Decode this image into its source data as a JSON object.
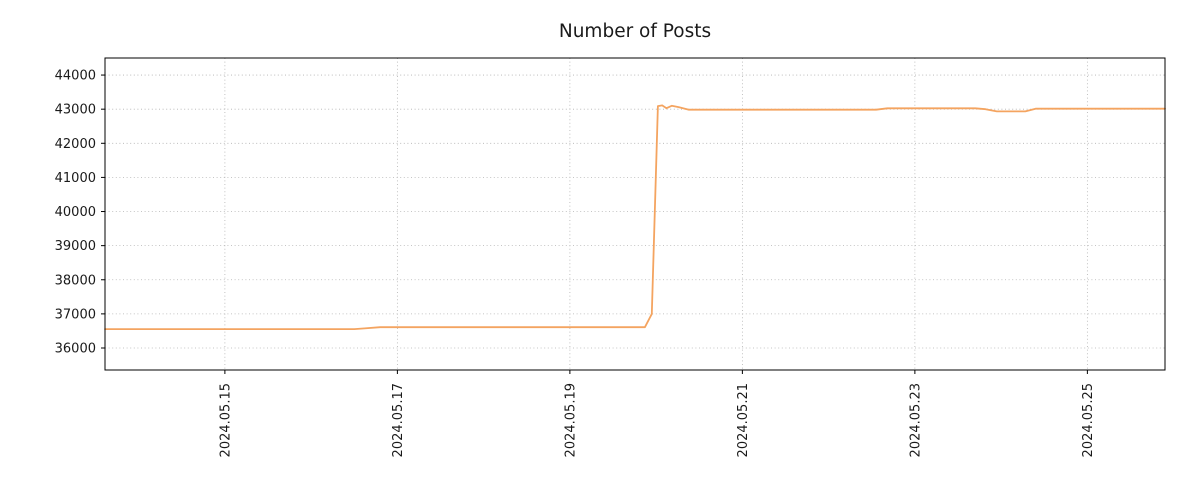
{
  "page": {
    "background": "#ffffff"
  },
  "chart_data": {
    "type": "line",
    "title": "Number of Posts",
    "xlabel": "",
    "ylabel": "",
    "legend": "none",
    "grid": {
      "visible": true,
      "style": "dotted",
      "color": "#b2b2b2"
    },
    "axis_color": "#000000",
    "xlim": [
      13.61,
      25.9
    ],
    "ylim": [
      35355,
      44500
    ],
    "x_ticks": {
      "values": [
        15,
        17,
        19,
        21,
        23,
        25
      ],
      "labels": [
        "2024.05.15",
        "2024.05.17",
        "2024.05.19",
        "2024.05.21",
        "2024.05.23",
        "2024.05.25"
      ]
    },
    "y_ticks": {
      "values": [
        36000,
        37000,
        38000,
        39000,
        40000,
        41000,
        42000,
        43000,
        44000
      ],
      "labels": [
        "36000",
        "37000",
        "38000",
        "39000",
        "40000",
        "41000",
        "42000",
        "43000",
        "44000"
      ]
    },
    "series": [
      {
        "name": "Number of Posts",
        "color": "#f4a460",
        "line_width": 1.8,
        "points": [
          [
            13.61,
            36555
          ],
          [
            16.5,
            36555
          ],
          [
            16.62,
            36575
          ],
          [
            16.8,
            36610
          ],
          [
            19.87,
            36610
          ],
          [
            19.95,
            37000
          ],
          [
            20.02,
            43090
          ],
          [
            20.07,
            43110
          ],
          [
            20.12,
            43030
          ],
          [
            20.18,
            43100
          ],
          [
            20.26,
            43060
          ],
          [
            20.38,
            42985
          ],
          [
            22.55,
            42985
          ],
          [
            22.68,
            43025
          ],
          [
            23.7,
            43025
          ],
          [
            23.82,
            43000
          ],
          [
            23.95,
            42935
          ],
          [
            24.28,
            42935
          ],
          [
            24.4,
            43015
          ],
          [
            25.9,
            43015
          ]
        ]
      }
    ]
  }
}
